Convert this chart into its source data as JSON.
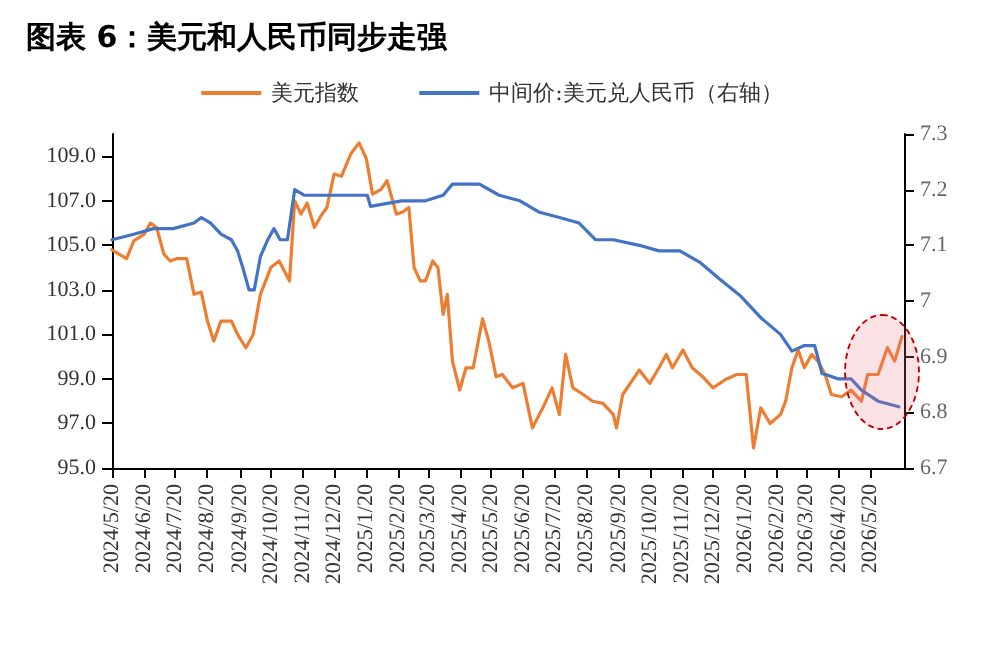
{
  "chart_data": {
    "type": "line",
    "title": "图表 6：美元和人民币同步走强",
    "legend": "top",
    "grid": false,
    "marker": "none",
    "line_style": "solid",
    "xlim": [
      "2024-05-20",
      "2026-06-22"
    ],
    "xticks": [
      {
        "value": "2024-05-20",
        "label": "2024/5/20"
      },
      {
        "value": "2024-06-20",
        "label": "2024/6/20"
      },
      {
        "value": "2024-07-20",
        "label": "2024/7/20"
      },
      {
        "value": "2024-08-20",
        "label": "2024/8/20"
      },
      {
        "value": "2024-09-20",
        "label": "2024/9/20"
      },
      {
        "value": "2024-10-20",
        "label": "2024/10/20"
      },
      {
        "value": "2024-11-20",
        "label": "2024/11/20"
      },
      {
        "value": "2024-12-20",
        "label": "2024/12/20"
      },
      {
        "value": "2025-01-20",
        "label": "2025/1/20"
      },
      {
        "value": "2025-02-20",
        "label": "2025/2/20"
      },
      {
        "value": "2025-03-20",
        "label": "2025/3/20"
      },
      {
        "value": "2025-04-20",
        "label": "2025/4/20"
      },
      {
        "value": "2025-05-20",
        "label": "2025/5/20"
      },
      {
        "value": "2025-06-20",
        "label": "2025/6/20"
      },
      {
        "value": "2025-07-20",
        "label": "2025/7/20"
      },
      {
        "value": "2025-08-20",
        "label": "2025/8/20"
      },
      {
        "value": "2025-09-20",
        "label": "2025/9/20"
      },
      {
        "value": "2025-10-20",
        "label": "2025/10/20"
      },
      {
        "value": "2025-11-20",
        "label": "2025/11/20"
      },
      {
        "value": "2025-12-20",
        "label": "2025/12/20"
      },
      {
        "value": "2026-01-20",
        "label": "2026/1/20"
      },
      {
        "value": "2026-02-20",
        "label": "2026/2/20"
      },
      {
        "value": "2026-03-20",
        "label": "2026/3/20"
      },
      {
        "value": "2026-04-20",
        "label": "2026/4/20"
      },
      {
        "value": "2026-05-20",
        "label": "2026/5/20"
      }
    ],
    "ylim": [
      95,
      110
    ],
    "yticks": [
      {
        "value": 95,
        "label": "95.0"
      },
      {
        "value": 97,
        "label": "97.0"
      },
      {
        "value": 99,
        "label": "99.0"
      },
      {
        "value": 101,
        "label": "101.0"
      },
      {
        "value": 103,
        "label": "103.0"
      },
      {
        "value": 105,
        "label": "105.0"
      },
      {
        "value": 107,
        "label": "107.0"
      },
      {
        "value": 109,
        "label": "109.0"
      }
    ],
    "y2lim": [
      6.7,
      7.3
    ],
    "y2ticks": [
      6.7,
      6.8,
      6.9,
      7,
      7.1,
      7.2,
      7.3
    ],
    "series": [
      {
        "name": "美元指数",
        "color": "#ed7d31",
        "x": [
          "2024-05-20",
          "2024-06-03",
          "2024-06-10",
          "2024-06-20",
          "2024-06-26",
          "2024-07-02",
          "2024-07-09",
          "2024-07-15",
          "2024-07-21",
          "2024-07-31",
          "2024-08-07",
          "2024-08-14",
          "2024-08-20",
          "2024-08-26",
          "2024-09-02",
          "2024-09-12",
          "2024-09-18",
          "2024-09-26",
          "2024-10-03",
          "2024-10-10",
          "2024-10-20",
          "2024-10-28",
          "2024-11-07",
          "2024-11-12",
          "2024-11-18",
          "2024-11-24",
          "2024-12-01",
          "2024-12-07",
          "2024-12-13",
          "2024-12-20",
          "2024-12-27",
          "2025-01-05",
          "2025-01-13",
          "2025-01-20",
          "2025-01-26",
          "2025-02-03",
          "2025-02-09",
          "2025-02-18",
          "2025-02-24",
          "2025-03-02",
          "2025-03-07",
          "2025-03-13",
          "2025-03-18",
          "2025-03-25",
          "2025-03-30",
          "2025-04-04",
          "2025-04-08",
          "2025-04-13",
          "2025-04-20",
          "2025-04-26",
          "2025-05-03",
          "2025-05-12",
          "2025-05-18",
          "2025-05-25",
          "2025-05-31",
          "2025-06-10",
          "2025-06-20",
          "2025-06-29",
          "2025-07-09",
          "2025-07-18",
          "2025-07-25",
          "2025-07-31",
          "2025-08-07",
          "2025-08-17",
          "2025-08-26",
          "2025-09-05",
          "2025-09-15",
          "2025-09-18",
          "2025-09-24",
          "2025-10-10",
          "2025-10-20",
          "2025-10-29",
          "2025-11-05",
          "2025-11-11",
          "2025-11-21",
          "2025-11-30",
          "2025-12-10",
          "2025-12-20",
          "2026-01-02",
          "2026-01-12",
          "2026-01-21",
          "2026-01-28",
          "2026-02-04",
          "2026-02-13",
          "2026-02-23",
          "2026-02-28",
          "2026-03-06",
          "2026-03-12",
          "2026-03-18",
          "2026-03-25",
          "2026-03-31",
          "2026-04-07",
          "2026-04-13",
          "2026-04-23",
          "2026-05-02",
          "2026-05-12",
          "2026-05-18",
          "2026-05-28",
          "2026-06-06",
          "2026-06-13",
          "2026-06-20"
        ],
        "values": [
          104.8,
          104.4,
          105.2,
          105.5,
          106.0,
          105.8,
          104.6,
          104.3,
          104.4,
          104.4,
          102.8,
          102.9,
          101.6,
          100.7,
          101.6,
          101.6,
          101.0,
          100.4,
          101.0,
          102.8,
          104.0,
          104.3,
          103.4,
          107.0,
          106.4,
          106.9,
          105.8,
          106.3,
          106.7,
          108.2,
          108.1,
          109.1,
          109.6,
          108.9,
          107.3,
          107.5,
          107.9,
          106.4,
          106.5,
          106.7,
          104.0,
          103.4,
          103.4,
          104.3,
          104.0,
          101.9,
          102.8,
          99.8,
          98.5,
          99.5,
          99.5,
          101.7,
          100.7,
          99.1,
          99.2,
          98.6,
          98.8,
          96.8,
          97.7,
          98.6,
          97.4,
          100.1,
          98.6,
          98.3,
          98.0,
          97.9,
          97.4,
          96.8,
          98.3,
          99.4,
          98.8,
          99.5,
          100.1,
          99.5,
          100.3,
          99.5,
          99.1,
          98.6,
          99.0,
          99.2,
          99.2,
          95.9,
          97.7,
          97.0,
          97.4,
          98.0,
          99.5,
          100.3,
          99.5,
          100.1,
          99.8,
          99.2,
          98.3,
          98.2,
          98.5,
          98.0,
          99.2,
          99.2,
          100.4,
          99.8,
          100.9
        ]
      },
      {
        "name": "中间价:美元兑人民币（右轴）",
        "color": "#4472c4",
        "axis": "y2",
        "x": [
          "2024-05-20",
          "2024-06-10",
          "2024-06-29",
          "2024-07-18",
          "2024-08-07",
          "2024-08-14",
          "2024-08-23",
          "2024-09-02",
          "2024-09-12",
          "2024-09-18",
          "2024-09-23",
          "2024-09-29",
          "2024-10-04",
          "2024-10-10",
          "2024-10-17",
          "2024-10-23",
          "2024-10-29",
          "2024-11-05",
          "2024-11-12",
          "2024-11-21",
          "2024-12-07",
          "2025-01-01",
          "2025-01-21",
          "2025-01-24",
          "2025-02-23",
          "2025-03-18",
          "2025-04-04",
          "2025-04-13",
          "2025-04-26",
          "2025-05-09",
          "2025-05-28",
          "2025-06-17",
          "2025-07-05",
          "2025-07-25",
          "2025-08-13",
          "2025-08-29",
          "2025-09-15",
          "2025-10-10",
          "2025-10-29",
          "2025-11-18",
          "2025-12-07",
          "2025-12-26",
          "2026-01-15",
          "2026-02-04",
          "2026-02-23",
          "2026-03-06",
          "2026-03-18",
          "2026-03-28",
          "2026-04-04",
          "2026-04-20",
          "2026-05-02",
          "2026-05-12",
          "2026-05-28",
          "2026-06-17"
        ],
        "values": [
          7.11,
          7.12,
          7.13,
          7.13,
          7.14,
          7.15,
          7.14,
          7.12,
          7.11,
          7.09,
          7.06,
          7.02,
          7.02,
          7.08,
          7.11,
          7.13,
          7.11,
          7.11,
          7.2,
          7.19,
          7.19,
          7.19,
          7.19,
          7.17,
          7.18,
          7.18,
          7.19,
          7.21,
          7.21,
          7.21,
          7.19,
          7.18,
          7.16,
          7.15,
          7.14,
          7.11,
          7.11,
          7.1,
          7.09,
          7.09,
          7.07,
          7.04,
          7.01,
          6.97,
          6.94,
          6.91,
          6.92,
          6.92,
          6.87,
          6.86,
          6.86,
          6.84,
          6.82,
          6.81
        ]
      }
    ]
  }
}
